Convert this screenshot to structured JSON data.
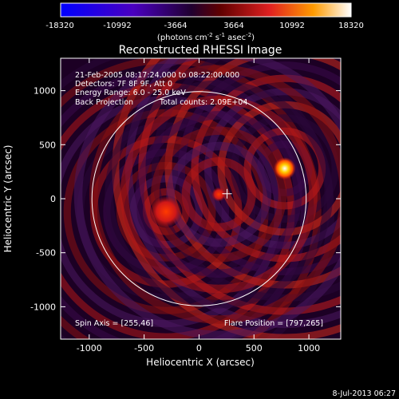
{
  "colorbar": {
    "ticks": [
      "-18320",
      "-10992",
      "-3664",
      "3664",
      "10992",
      "18320"
    ],
    "units_main": "(photons cm",
    "units_exp1": "-2",
    "units_mid": " s",
    "units_exp2": "-1",
    "units_end": " asec",
    "units_exp3": "-2",
    "units_close": ")"
  },
  "info": {
    "line1": "21-Feb-2005 08:17:24.000 to 08:22:00.000",
    "line2": "Detectors: 7F 8F 9F, Att 0",
    "line3": "Energy Range: 6.0 - 25.0 keV",
    "line4a": "Back Projection",
    "line4b": "Total counts: 2.09E+04"
  },
  "footer": {
    "spin_axis": "Spin Axis = [255,46]",
    "flare_position": "Flare Position = [797,265]",
    "date_stamp": "8-Jul-2013 06:27"
  },
  "chart_data": {
    "type": "heatmap",
    "title": "Reconstructed RHESSI Image",
    "xlabel": "Heliocentric X (arcsec)",
    "ylabel": "Heliocentric Y (arcsec)",
    "xlim": [
      -1260,
      1290
    ],
    "ylim": [
      -1300,
      1300
    ],
    "x_ticks": [
      -1000,
      -500,
      0,
      500,
      1000
    ],
    "y_ticks": [
      -1000,
      -500,
      0,
      500,
      1000
    ],
    "x_tick_labels": [
      "-1000",
      "-500",
      "0",
      "500",
      "1000"
    ],
    "y_tick_labels": [
      "-1000",
      "-500",
      "0",
      "500",
      "1000"
    ],
    "color_scale": {
      "min": -18320,
      "max": 18320
    },
    "solar_limb": {
      "center": [
        0,
        0
      ],
      "radius": 975
    },
    "spin_axis": [
      255,
      46
    ],
    "flare_position": [
      797,
      265
    ],
    "sources": [
      {
        "x": 780,
        "y": 280,
        "intensity": 18320
      },
      {
        "x": -300,
        "y": -120,
        "intensity": 9000
      },
      {
        "x": 180,
        "y": 40,
        "intensity": 7000
      }
    ]
  }
}
